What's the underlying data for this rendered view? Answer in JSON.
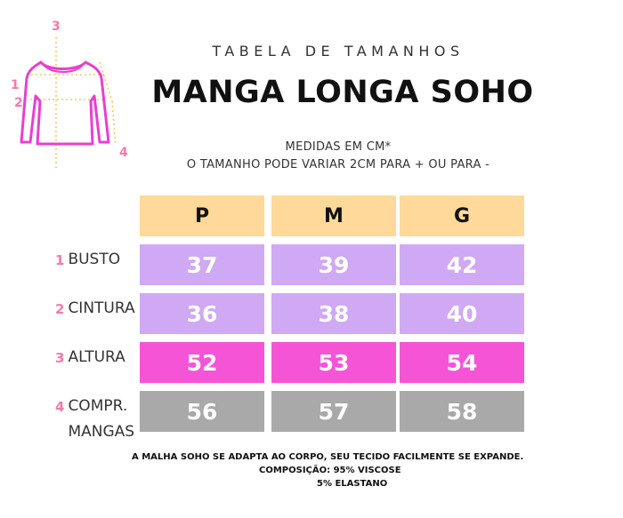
{
  "header": {
    "subtitle": "TABELA DE TAMANHOS",
    "title": "MANGA LONGA SOHO",
    "note_line1": "MEDIDAS EM CM*",
    "note_line2": "O TAMANHO PODE VARIAR 2CM PARA + OU PARA -"
  },
  "illustration": {
    "markers": [
      "1",
      "2",
      "3",
      "4"
    ],
    "garment_color": "#e83fd0",
    "marker_color": "#f47aa8",
    "guide_color": "#f2c96b"
  },
  "table": {
    "columns": [
      "P",
      "M",
      "G"
    ],
    "rows": [
      {
        "num": "1",
        "label": "BUSTO",
        "values": [
          "37",
          "39",
          "42"
        ],
        "color": "#cfa9f3"
      },
      {
        "num": "2",
        "label": "CINTURA",
        "values": [
          "36",
          "38",
          "40"
        ],
        "color": "#cfa9f3"
      },
      {
        "num": "3",
        "label": "ALTURA",
        "values": [
          "52",
          "53",
          "54"
        ],
        "color": "#f654d7"
      },
      {
        "num": "4",
        "label": "COMPR. MANGAS",
        "values": [
          "56",
          "57",
          "58"
        ],
        "color": "#a9a9a9"
      }
    ],
    "header_color": "#fed99a"
  },
  "footer": {
    "line1": "A MALHA SOHO SE ADAPTA AO CORPO, SEU TECIDO FACILMENTE SE EXPANDE.",
    "line2": "COMPOSIÇÃO: 95% VISCOSE",
    "line3": "5% ELASTANO"
  }
}
